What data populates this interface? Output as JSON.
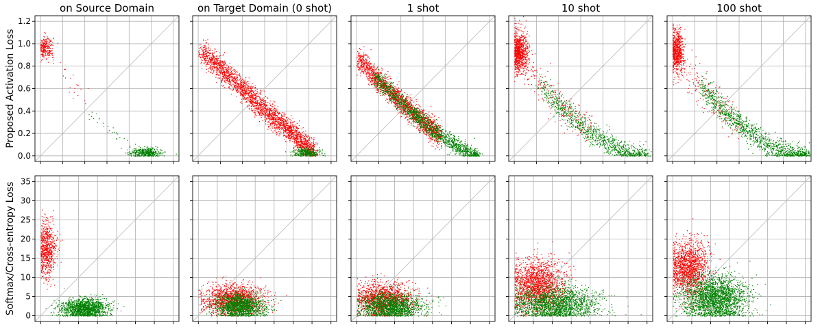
{
  "chart_data": {
    "type": "scatter",
    "columns": [
      "on Source Domain",
      "on Target Domain (0 shot)",
      "1 shot",
      "10 shot",
      "100 shot"
    ],
    "grid": true,
    "series_colors": {
      "red": "#ff0000",
      "green": "#008000"
    },
    "diagonal_color": "#bbbbbb",
    "rows": [
      {
        "ylabel": "Proposed Activation Loss",
        "ylim": [
          -0.05,
          1.25
        ],
        "yticks": [
          "0.0",
          "0.2",
          "0.4",
          "0.6",
          "0.8",
          "1.0",
          "1.2"
        ],
        "ytick_values": [
          0.0,
          0.2,
          0.4,
          0.6,
          0.8,
          1.0,
          1.2
        ],
        "xlim": [
          -0.05,
          1.25
        ]
      },
      {
        "ylabel": "Softmax/Cross-entropy Loss",
        "ylim": [
          -1.5,
          36.5
        ],
        "yticks": [
          "0",
          "5",
          "10",
          "15",
          "20",
          "25",
          "30",
          "35"
        ],
        "ytick_values": [
          0,
          5,
          10,
          15,
          20,
          25,
          30,
          35
        ],
        "xlim": [
          -1.5,
          36.5
        ]
      }
    ],
    "panels": [
      {
        "row": 0,
        "col": 0,
        "clusters": [
          {
            "color": "red",
            "count": 260,
            "shape": "blob",
            "cx": 0.04,
            "cy": 0.97,
            "sx": 0.035,
            "sy": 0.05
          },
          {
            "color": "red",
            "count": 25,
            "shape": "line",
            "x0": 0.06,
            "y0": 0.95,
            "x1": 0.45,
            "y1": 0.42,
            "spread": 0.04
          },
          {
            "color": "green",
            "count": 30,
            "shape": "line",
            "x0": 0.42,
            "y0": 0.4,
            "x1": 0.85,
            "y1": 0.06,
            "spread": 0.03
          },
          {
            "color": "green",
            "count": 420,
            "shape": "blob",
            "cx": 0.95,
            "cy": 0.03,
            "sx": 0.07,
            "sy": 0.022
          }
        ]
      },
      {
        "row": 0,
        "col": 1,
        "clusters": [
          {
            "color": "red",
            "count": 2600,
            "shape": "curve",
            "x0": 0.02,
            "x1": 1.05,
            "a": 0.96,
            "b": 0.0,
            "p": 1.05,
            "spread": 0.05
          },
          {
            "color": "green",
            "count": 350,
            "shape": "blob",
            "cx": 0.98,
            "cy": 0.03,
            "sx": 0.06,
            "sy": 0.02
          }
        ]
      },
      {
        "row": 0,
        "col": 2,
        "clusters": [
          {
            "color": "red",
            "count": 2000,
            "shape": "curve",
            "x0": 0.0,
            "x1": 0.75,
            "a": 0.88,
            "b": 0.0,
            "p": 1.0,
            "range": 1.1,
            "pw": 1.35,
            "spread": 0.05
          },
          {
            "color": "green",
            "count": 1600,
            "shape": "curve",
            "x0": 0.15,
            "x1": 1.1,
            "a": 0.88,
            "b": 0.0,
            "p": 1.0,
            "range": 1.1,
            "pw": 1.35,
            "spread": 0.04
          }
        ]
      },
      {
        "row": 0,
        "col": 3,
        "clusters": [
          {
            "color": "red",
            "count": 900,
            "shape": "blob",
            "cx": 0.04,
            "cy": 0.93,
            "sx": 0.04,
            "sy": 0.09
          },
          {
            "color": "red",
            "count": 250,
            "shape": "curve",
            "x0": 0.05,
            "x1": 0.7,
            "a": 0.92,
            "b": 0.0,
            "p": 1.0,
            "range": 1.15,
            "pw": 1.6,
            "spread": 0.07
          },
          {
            "color": "green",
            "count": 1000,
            "shape": "curve",
            "x0": 0.25,
            "x1": 1.2,
            "a": 0.92,
            "b": 0.0,
            "p": 1.0,
            "range": 1.15,
            "pw": 1.6,
            "spread": 0.05
          }
        ]
      },
      {
        "row": 0,
        "col": 4,
        "clusters": [
          {
            "color": "red",
            "count": 700,
            "shape": "blob",
            "cx": 0.035,
            "cy": 0.93,
            "sx": 0.03,
            "sy": 0.1
          },
          {
            "color": "red",
            "count": 200,
            "shape": "curve",
            "x0": 0.05,
            "x1": 0.6,
            "a": 0.93,
            "b": 0.0,
            "p": 1.0,
            "range": 1.15,
            "pw": 1.6,
            "spread": 0.08
          },
          {
            "color": "green",
            "count": 1200,
            "shape": "curve",
            "x0": 0.25,
            "x1": 1.22,
            "a": 0.93,
            "b": 0.0,
            "p": 1.0,
            "range": 1.15,
            "pw": 1.6,
            "spread": 0.05
          }
        ]
      },
      {
        "row": 1,
        "col": 0,
        "clusters": [
          {
            "color": "red",
            "count": 700,
            "shape": "blob",
            "cx": 1.6,
            "cy": 17.5,
            "sx": 1.2,
            "sy": 3.5
          },
          {
            "color": "green",
            "count": 1500,
            "shape": "blob",
            "cx": 11.5,
            "cy": 2.0,
            "sx": 3.0,
            "sy": 1.3
          }
        ]
      },
      {
        "row": 1,
        "col": 1,
        "clusters": [
          {
            "color": "red",
            "count": 1500,
            "shape": "blob",
            "cx": 9.0,
            "cy": 4.2,
            "sx": 3.8,
            "sy": 2.0
          },
          {
            "color": "green",
            "count": 1500,
            "shape": "blob",
            "cx": 11.0,
            "cy": 2.5,
            "sx": 3.3,
            "sy": 1.6
          }
        ]
      },
      {
        "row": 1,
        "col": 2,
        "clusters": [
          {
            "color": "red",
            "count": 1400,
            "shape": "blob",
            "cx": 7.0,
            "cy": 4.5,
            "sx": 3.8,
            "sy": 2.2
          },
          {
            "color": "green",
            "count": 1600,
            "shape": "blob",
            "cx": 9.0,
            "cy": 2.5,
            "sx": 4.0,
            "sy": 1.8
          }
        ]
      },
      {
        "row": 1,
        "col": 3,
        "clusters": [
          {
            "color": "red",
            "count": 1700,
            "shape": "blob",
            "cx": 6.0,
            "cy": 8.0,
            "sx": 3.5,
            "sy": 3.3
          },
          {
            "color": "green",
            "count": 2000,
            "shape": "blob",
            "cx": 11.0,
            "cy": 3.2,
            "sx": 5.5,
            "sy": 2.3
          }
        ]
      },
      {
        "row": 1,
        "col": 4,
        "clusters": [
          {
            "color": "red",
            "count": 1500,
            "shape": "blob",
            "cx": 4.2,
            "cy": 12.5,
            "sx": 2.6,
            "sy": 3.5
          },
          {
            "color": "green",
            "count": 2400,
            "shape": "blob",
            "cx": 11.0,
            "cy": 4.5,
            "sx": 4.3,
            "sy": 3.0
          }
        ]
      }
    ]
  }
}
